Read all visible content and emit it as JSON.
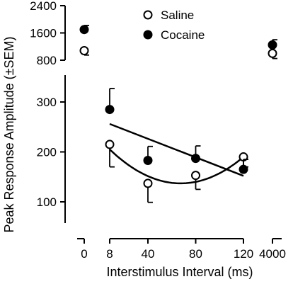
{
  "chart_data": {
    "type": "scatter",
    "xlabel": "Interstimulus Interval (ms)",
    "ylabel": "Peak Response Amplitude (±SEM)",
    "x_axis": {
      "segments": [
        {
          "ticks": [
            0
          ],
          "labels": [
            "0"
          ]
        },
        {
          "ticks": [
            8,
            40,
            80,
            120
          ],
          "labels": [
            "8",
            "40",
            "80",
            "120"
          ]
        },
        {
          "ticks": [
            4000
          ],
          "labels": [
            "4000"
          ]
        }
      ]
    },
    "y_axis": {
      "segments": [
        {
          "range": [
            60,
            340
          ],
          "ticks": [
            100,
            200,
            300
          ],
          "labels": [
            "100",
            "200",
            "300"
          ]
        },
        {
          "range": [
            800,
            2400
          ],
          "ticks": [
            800,
            1600,
            2400
          ],
          "labels": [
            "800",
            "1600",
            "2400"
          ]
        }
      ]
    },
    "legend": {
      "position": "top-center"
    },
    "series": [
      {
        "name": "Saline",
        "marker": "open-circle",
        "points": [
          {
            "x": 0,
            "y": 1080,
            "sem": 130
          },
          {
            "x": 8,
            "y": 215,
            "sem": 45
          },
          {
            "x": 40,
            "y": 137,
            "sem": 38
          },
          {
            "x": 80,
            "y": 153,
            "sem": 28
          },
          {
            "x": 120,
            "y": 190,
            "sem": 20
          },
          {
            "x": 4000,
            "y": 1000,
            "sem": 150
          }
        ],
        "fit": {
          "kind": "quadratic",
          "x": [
            8,
            120
          ],
          "points": [
            [
              8,
              205
            ],
            [
              40,
              155
            ],
            [
              80,
              140
            ],
            [
              120,
              190
            ]
          ]
        }
      },
      {
        "name": "Cocaine",
        "marker": "filled-circle",
        "points": [
          {
            "x": 0,
            "y": 1700,
            "sem": 120
          },
          {
            "x": 8,
            "y": 285,
            "sem": 42
          },
          {
            "x": 40,
            "y": 183,
            "sem": 28
          },
          {
            "x": 80,
            "y": 187,
            "sem": 25
          },
          {
            "x": 120,
            "y": 165,
            "sem": 20
          },
          {
            "x": 4000,
            "y": 1250,
            "sem": 150
          }
        ],
        "fit": {
          "kind": "linear",
          "x": [
            8,
            120
          ],
          "points": [
            [
              8,
              256
            ],
            [
              120,
              152
            ]
          ]
        }
      }
    ]
  }
}
